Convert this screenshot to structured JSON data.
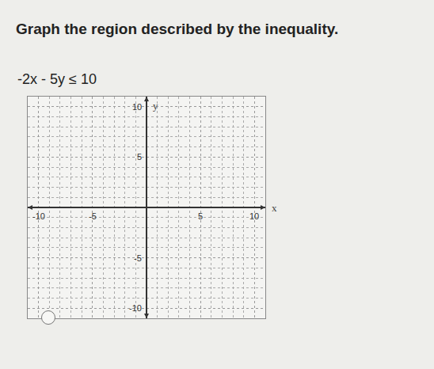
{
  "header": {
    "title": "Graph the region described by the inequality.",
    "inequality": "-2x - 5y ≤ 10"
  },
  "chart_data": {
    "type": "scatter",
    "x_label": "x",
    "y_label": "y",
    "xlim": [
      -11,
      11
    ],
    "ylim": [
      -11,
      11
    ],
    "xticks": [
      -10,
      -5,
      5,
      10
    ],
    "yticks": [
      -10,
      -5,
      5,
      10
    ],
    "grid": true
  }
}
